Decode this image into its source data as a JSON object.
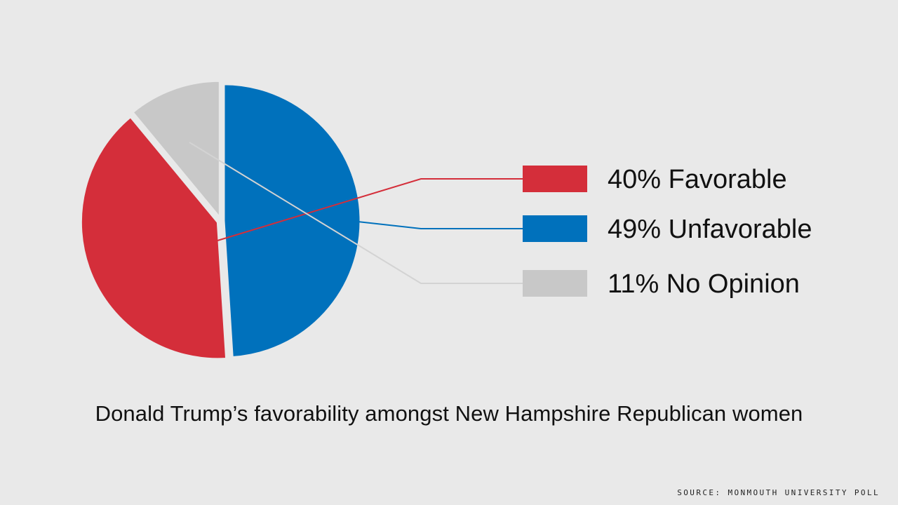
{
  "chart_data": {
    "type": "pie",
    "title": "Donald Trump’s favorability amongst New Hampshire Republican women",
    "source": "SOURCE: MONMOUTH UNIVERSITY POLL",
    "slices": [
      {
        "label": "Unfavorable",
        "value": 49,
        "display": "49% Unfavorable",
        "color": "#0071bc"
      },
      {
        "label": "Favorable",
        "value": 40,
        "display": "40% Favorable",
        "color": "#d42e3a"
      },
      {
        "label": "No Opinion",
        "value": 11,
        "display": "11% No Opinion",
        "color": "#c8c8c8"
      }
    ],
    "legend_order": [
      "Favorable",
      "Unfavorable",
      "No Opinion"
    ],
    "legend_position": "right"
  }
}
